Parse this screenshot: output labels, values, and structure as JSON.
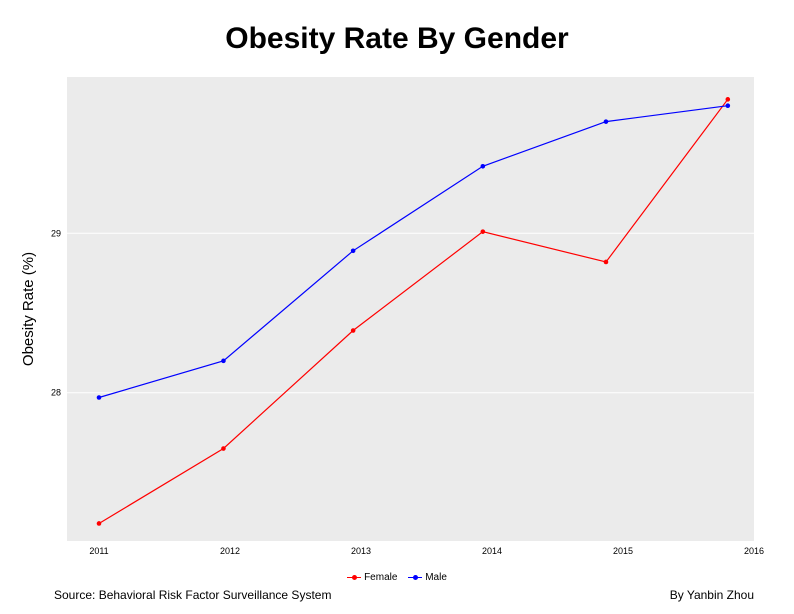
{
  "chart_data": {
    "type": "line",
    "title": "Obesity Rate By Gender",
    "xlabel": "",
    "ylabel": "Obesity Rate (%)",
    "xlim": [
      2011,
      2016
    ],
    "ylim": [
      27.07,
      29.98
    ],
    "x_ticks": [
      "2011",
      "2012",
      "2013",
      "2014",
      "2015",
      "2016"
    ],
    "y_ticks": [
      "28",
      "29"
    ],
    "grid": true,
    "legend_position": "bottom",
    "series": [
      {
        "name": "Female",
        "color": "#ff0000",
        "x": [
          2011.0,
          2011.95,
          2012.94,
          2013.93,
          2014.87,
          2015.8
        ],
        "y": [
          27.18,
          27.65,
          28.39,
          29.01,
          28.82,
          29.84
        ]
      },
      {
        "name": "Male",
        "color": "#0000ff",
        "x": [
          2011.0,
          2011.95,
          2012.94,
          2013.93,
          2014.87,
          2015.8
        ],
        "y": [
          27.97,
          28.2,
          28.89,
          29.42,
          29.7,
          29.8
        ]
      }
    ]
  },
  "footer": {
    "source": "Source: Behavioral Risk Factor Surveillance System",
    "author": "By Yanbin Zhou"
  }
}
